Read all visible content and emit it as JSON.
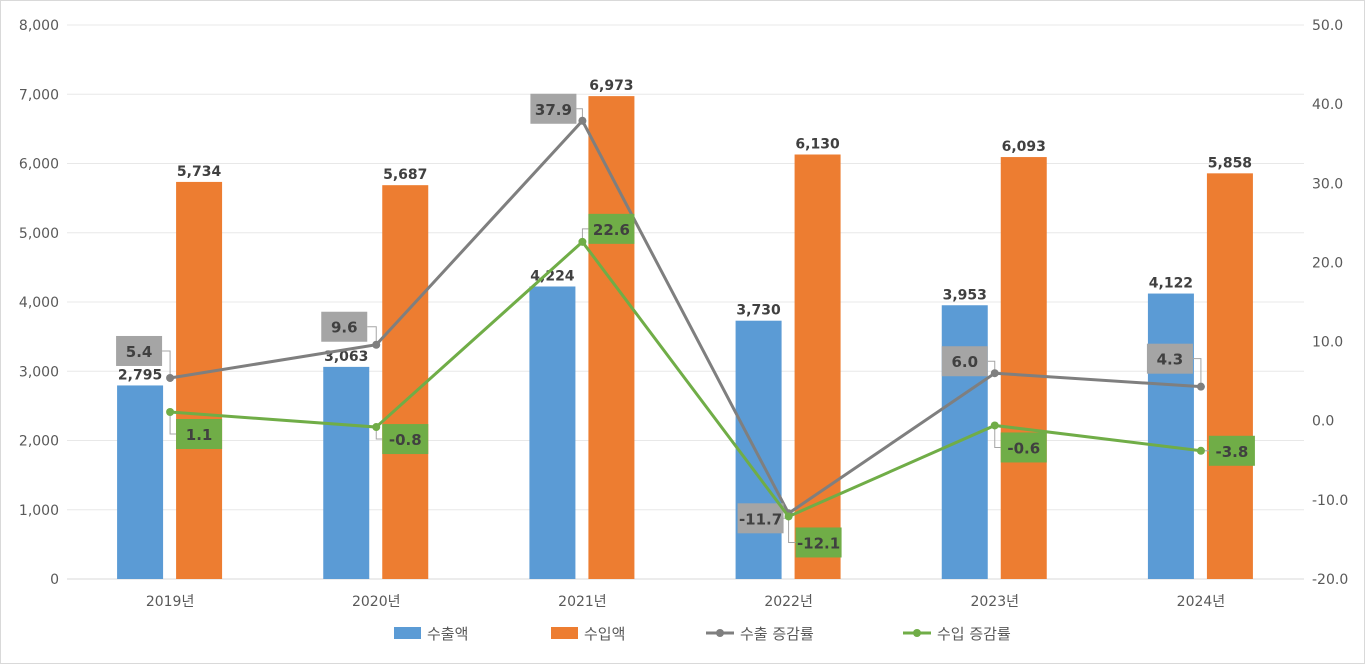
{
  "chart_data": {
    "type": "bar",
    "categories": [
      "2019년",
      "2020년",
      "2021년",
      "2022년",
      "2023년",
      "2024년"
    ],
    "series": [
      {
        "name": "수출액",
        "type": "bar",
        "axis": "left",
        "color": "#5b9bd5",
        "values": [
          2795,
          3063,
          4224,
          3730,
          3953,
          4122
        ]
      },
      {
        "name": "수입액",
        "type": "bar",
        "axis": "left",
        "color": "#ed7d31",
        "values": [
          5734,
          5687,
          6973,
          6130,
          6093,
          5858
        ]
      },
      {
        "name": "수출 증감률",
        "type": "line",
        "axis": "right",
        "color": "#7f7f7f",
        "label_bg": "#a5a5a5",
        "values": [
          5.4,
          9.6,
          37.9,
          -11.7,
          6.0,
          4.3
        ]
      },
      {
        "name": "수입 증감률",
        "type": "line",
        "axis": "right",
        "color": "#70ad47",
        "label_bg": "#70ad47",
        "values": [
          1.1,
          -0.8,
          22.6,
          -12.1,
          -0.6,
          -3.8
        ]
      }
    ],
    "y_left": {
      "min": 0,
      "max": 8000,
      "step": 1000,
      "ticks": [
        "0",
        "1,000",
        "2,000",
        "3,000",
        "4,000",
        "5,000",
        "6,000",
        "7,000",
        "8,000"
      ]
    },
    "y_right": {
      "min": -20,
      "max": 50,
      "step": 10,
      "ticks": [
        "-20.0",
        "-10.0",
        "0.0",
        "10.0",
        "20.0",
        "30.0",
        "40.0",
        "50.0"
      ]
    },
    "grid": true,
    "legend": "bottom"
  }
}
